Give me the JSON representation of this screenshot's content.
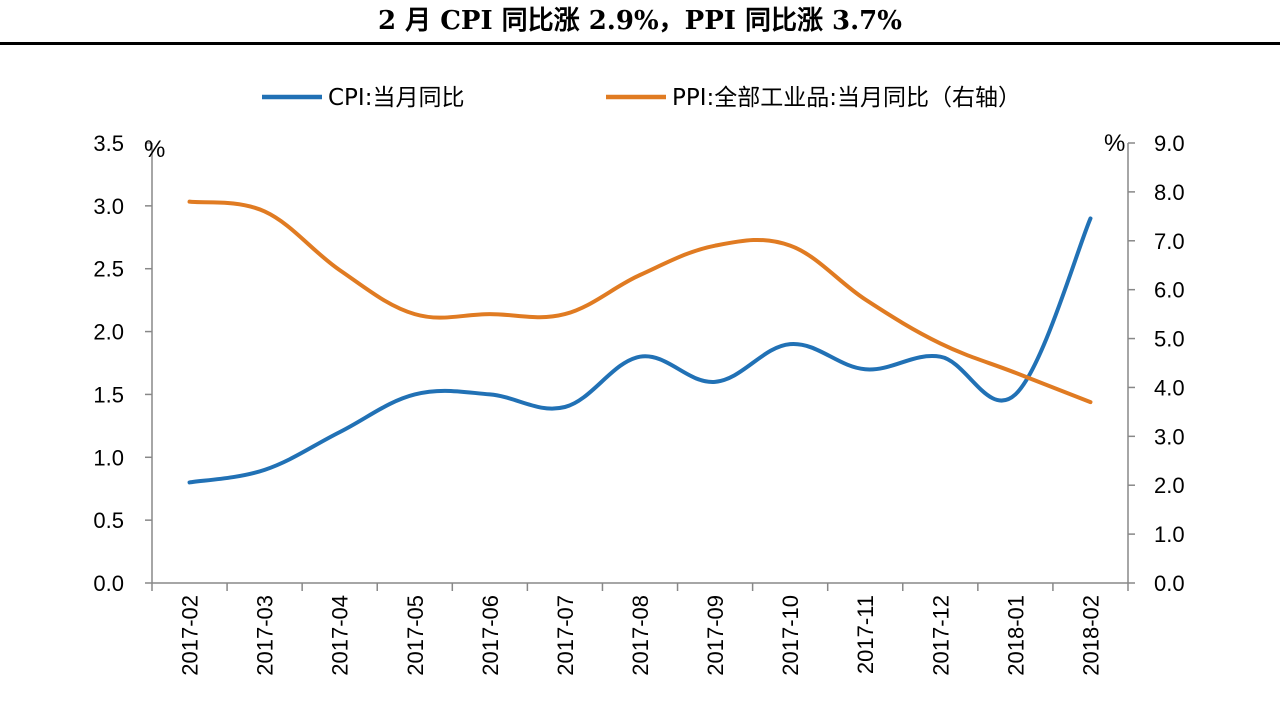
{
  "title": "2 月 CPI 同比涨 2.9%，PPI 同比涨 3.7%",
  "chart_data": {
    "type": "line",
    "x": [
      "2017-02",
      "2017-03",
      "2017-04",
      "2017-05",
      "2017-06",
      "2017-07",
      "2017-08",
      "2017-09",
      "2017-10",
      "2017-11",
      "2017-12",
      "2018-01",
      "2018-02"
    ],
    "series": [
      {
        "name": "CPI:当月同比",
        "axis": "left",
        "color": "#2171B5",
        "values": [
          0.8,
          0.9,
          1.2,
          1.5,
          1.5,
          1.4,
          1.8,
          1.6,
          1.9,
          1.7,
          1.8,
          1.5,
          2.9
        ]
      },
      {
        "name": "PPI:全部工业品:当月同比（右轴）",
        "axis": "right",
        "color": "#E07B22",
        "values": [
          7.8,
          7.6,
          6.4,
          5.5,
          5.5,
          5.5,
          6.3,
          6.9,
          6.9,
          5.8,
          4.9,
          4.3,
          3.7
        ]
      }
    ],
    "y_left": {
      "unit": "%",
      "ylim": [
        0,
        3.5
      ],
      "ticks": [
        "0.0",
        "0.5",
        "1.0",
        "1.5",
        "2.0",
        "2.5",
        "3.0",
        "3.5"
      ]
    },
    "y_right": {
      "unit": "%",
      "ylim": [
        0,
        9
      ],
      "ticks": [
        "0.0",
        "1.0",
        "2.0",
        "3.0",
        "4.0",
        "5.0",
        "6.0",
        "7.0",
        "8.0",
        "9.0"
      ]
    },
    "legend_position": "top",
    "grid": false
  }
}
